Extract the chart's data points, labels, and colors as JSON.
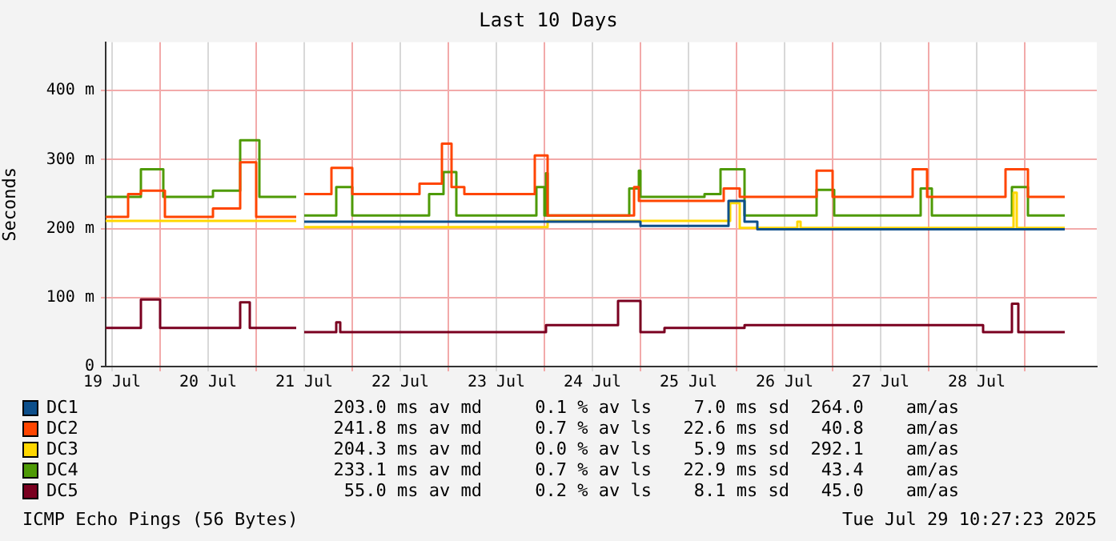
{
  "chart_data": {
    "type": "step",
    "title": "Last 10 Days",
    "ylabel": "Seconds",
    "xlim": [
      "2025-07-19T10:24",
      "2025-07-29T18:00"
    ],
    "xticks": [
      {
        "value": "2025-07-19T12:00",
        "label": "19 Jul"
      },
      {
        "value": "2025-07-20T00:00",
        "label": null
      },
      {
        "value": "2025-07-20T12:00",
        "label": "20 Jul"
      },
      {
        "value": "2025-07-21T00:00",
        "label": null
      },
      {
        "value": "2025-07-21T12:00",
        "label": "21 Jul"
      },
      {
        "value": "2025-07-22T00:00",
        "label": null
      },
      {
        "value": "2025-07-22T12:00",
        "label": "22 Jul"
      },
      {
        "value": "2025-07-23T00:00",
        "label": null
      },
      {
        "value": "2025-07-23T12:00",
        "label": "23 Jul"
      },
      {
        "value": "2025-07-24T00:00",
        "label": null
      },
      {
        "value": "2025-07-24T12:00",
        "label": "24 Jul"
      },
      {
        "value": "2025-07-25T00:00",
        "label": null
      },
      {
        "value": "2025-07-25T12:00",
        "label": "25 Jul"
      },
      {
        "value": "2025-07-26T00:00",
        "label": null
      },
      {
        "value": "2025-07-26T12:00",
        "label": "26 Jul"
      },
      {
        "value": "2025-07-27T00:00",
        "label": null
      },
      {
        "value": "2025-07-27T12:00",
        "label": "27 Jul"
      },
      {
        "value": "2025-07-28T00:00",
        "label": null
      },
      {
        "value": "2025-07-28T12:00",
        "label": "28 Jul"
      },
      {
        "value": "2025-07-29T00:00",
        "label": null
      }
    ],
    "ylim": [
      0,
      470
    ],
    "yticks": [
      0,
      {
        "value": 100,
        "label": "100 m"
      },
      {
        "value": 200,
        "label": "200 m"
      },
      {
        "value": 300,
        "label": "300 m"
      },
      {
        "value": 400,
        "label": "400 m"
      }
    ],
    "grid": true,
    "legend": "bottom",
    "marker": "none",
    "line_style": "solid",
    "series": [
      {
        "name": "DC1",
        "color": "#0d4f8b",
        "x": [
          "2025-07-21T12:00",
          "2025-07-25T00:00",
          "2025-07-25T22:00",
          "2025-07-26T02:00",
          "2025-07-26T05:12",
          "2025-07-29T10:00"
        ],
        "values": [
          210,
          204,
          240,
          210,
          199,
          199
        ]
      },
      {
        "name": "DC2",
        "color": "#ff4500",
        "x": [
          "2025-07-19T10:24",
          "2025-07-19T16:00",
          "2025-07-19T19:12",
          "2025-07-20T01:12",
          "2025-07-20T13:12",
          "2025-07-20T20:00",
          "2025-07-21T00:00",
          "2025-07-21T10:00",
          "2025-07-21T10:24",
          "2025-07-21T12:00",
          "2025-07-21T18:48",
          "2025-07-22T00:00",
          "2025-07-22T16:48",
          "2025-07-22T22:24",
          "2025-07-23T00:48",
          "2025-07-23T04:00",
          "2025-07-23T21:36",
          "2025-07-24T00:48",
          "2025-07-24T22:24",
          "2025-07-24T23:36",
          "2025-07-25T20:48",
          "2025-07-26T00:48",
          "2025-07-26T20:00",
          "2025-07-27T00:00",
          "2025-07-27T20:00",
          "2025-07-27T23:36",
          "2025-07-28T19:12",
          "2025-07-29T00:48",
          "2025-07-29T10:00"
        ],
        "values": [
          217,
          250,
          255,
          217,
          229,
          296,
          217,
          217,
          null,
          250,
          288,
          250,
          265,
          323,
          260,
          250,
          306,
          219,
          260,
          240,
          258,
          246,
          284,
          246,
          286,
          246,
          286,
          246,
          246
        ]
      },
      {
        "name": "DC3",
        "color": "#ffd700",
        "x": [
          "2025-07-19T10:24",
          "2025-07-21T10:00",
          "2025-07-21T10:24",
          "2025-07-21T12:00",
          "2025-07-24T00:48",
          "2025-07-25T22:24",
          "2025-07-26T00:48",
          "2025-07-26T15:12",
          "2025-07-26T16:00",
          "2025-07-28T21:12",
          "2025-07-28T22:00",
          "2025-07-29T10:00"
        ],
        "values": [
          211,
          211,
          null,
          202,
          211,
          237,
          201,
          210,
          201,
          252,
          201,
          201
        ]
      },
      {
        "name": "DC4",
        "color": "#4e9a06",
        "x": [
          "2025-07-19T10:24",
          "2025-07-19T19:12",
          "2025-07-20T00:48",
          "2025-07-20T13:12",
          "2025-07-20T20:00",
          "2025-07-21T00:48",
          "2025-07-21T10:00",
          "2025-07-21T10:24",
          "2025-07-21T12:00",
          "2025-07-21T20:00",
          "2025-07-22T00:00",
          "2025-07-22T19:12",
          "2025-07-22T22:48",
          "2025-07-23T02:00",
          "2025-07-23T22:00",
          "2025-07-24T00:00",
          "2025-07-24T00:24",
          "2025-07-24T00:48",
          "2025-07-24T21:12",
          "2025-07-24T23:36",
          "2025-07-25T00:00",
          "2025-07-25T16:00",
          "2025-07-25T20:00",
          "2025-07-26T02:00",
          "2025-07-26T20:00",
          "2025-07-27T00:24",
          "2025-07-27T22:00",
          "2025-07-28T00:48",
          "2025-07-28T20:48",
          "2025-07-29T00:48",
          "2025-07-29T10:00"
        ],
        "values": [
          246,
          286,
          246,
          255,
          328,
          246,
          246,
          null,
          219,
          260,
          219,
          250,
          282,
          219,
          260,
          219,
          280,
          219,
          258,
          284,
          246,
          250,
          286,
          219,
          256,
          219,
          258,
          219,
          260,
          219,
          219
        ]
      },
      {
        "name": "DC5",
        "color": "#7a0020",
        "x": [
          "2025-07-19T10:24",
          "2025-07-19T19:12",
          "2025-07-20T00:00",
          "2025-07-20T20:00",
          "2025-07-20T22:24",
          "2025-07-21T10:00",
          "2025-07-21T10:24",
          "2025-07-21T12:00",
          "2025-07-21T20:00",
          "2025-07-21T21:00",
          "2025-07-24T00:24",
          "2025-07-24T18:24",
          "2025-07-25T00:00",
          "2025-07-25T06:00",
          "2025-07-26T02:00",
          "2025-07-28T13:36",
          "2025-07-28T20:48",
          "2025-07-28T22:24",
          "2025-07-29T10:00"
        ],
        "values": [
          56,
          97,
          56,
          93,
          56,
          56,
          null,
          50,
          64,
          50,
          60,
          95,
          50,
          56,
          60,
          50,
          91,
          50,
          50
        ]
      }
    ],
    "annotations": [
      "203.0 ms av md     0.1 % av ls    7.0 ms sd  264.0    am/as",
      "241.8 ms av md     0.7 % av ls   22.6 ms sd   40.8    am/as",
      "204.3 ms av md     0.0 % av ls    5.9 ms sd  292.1    am/as",
      "233.1 ms av md     0.7 % av ls   22.9 ms sd   43.4    am/as",
      " 55.0 ms av md     0.2 % av ls    8.1 ms sd   45.0    am/as",
      "ICMP Echo Pings (56 Bytes)",
      "Tue Jul 29 10:27:23 2025"
    ]
  }
}
